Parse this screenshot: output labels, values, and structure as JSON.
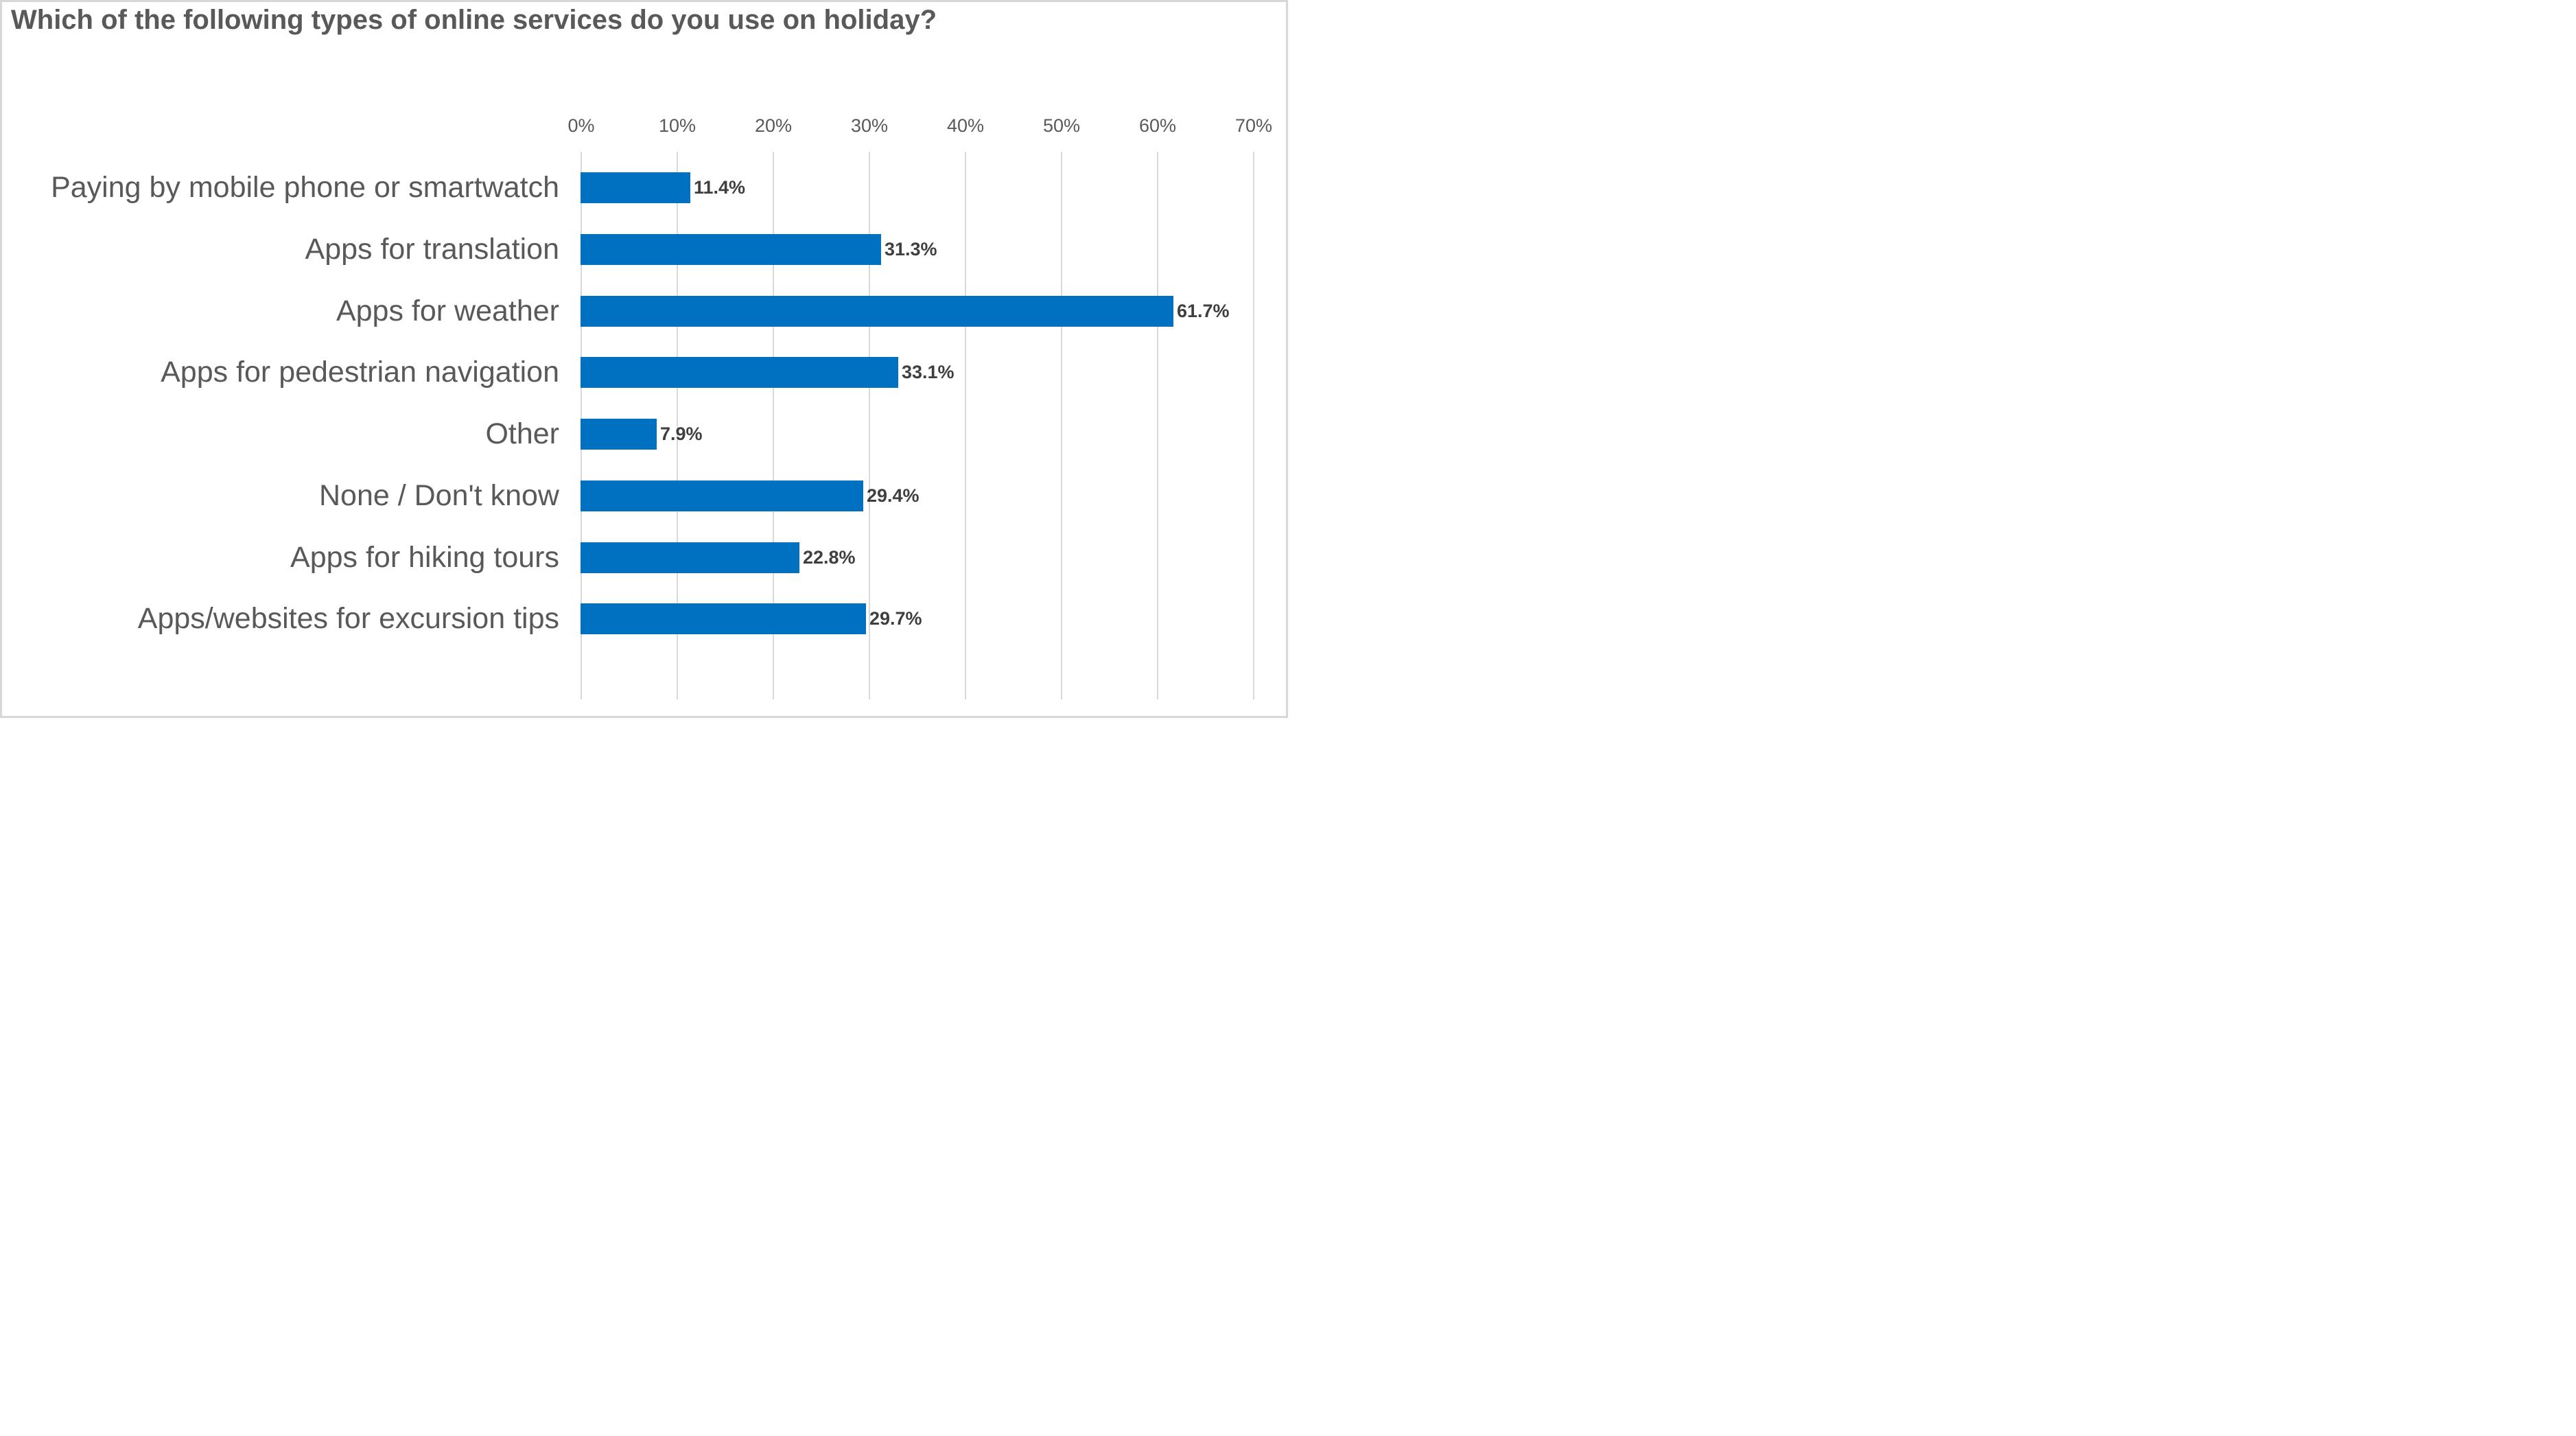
{
  "title": "Which of the following types of online services do you use on holiday?",
  "colors": {
    "bar": "#0070C0",
    "title_text": "#595959",
    "axis_text": "#595959",
    "category_text": "#595959",
    "value_label_text": "#3F3F3F",
    "gridline": "#D9D9D9",
    "frame_border": "#D7D7D7",
    "background": "#FFFFFF"
  },
  "chart_data": {
    "type": "bar",
    "orientation": "horizontal",
    "title": "Which of the following types of online services do you use on holiday?",
    "categories": [
      "Paying by mobile phone or smartwatch",
      "Apps for translation",
      "Apps for weather",
      "Apps for pedestrian navigation",
      "Other",
      "None / Don't know",
      "Apps for hiking tours",
      "Apps/websites for excursion tips"
    ],
    "values": [
      11.4,
      31.3,
      61.7,
      33.1,
      7.9,
      29.4,
      22.8,
      29.7
    ],
    "data_labels": [
      "11.4%",
      "31.3%",
      "61.7%",
      "33.1%",
      "7.9%",
      "29.4%",
      "22.8%",
      "29.7%"
    ],
    "x_axis": {
      "position": "top",
      "min": 0,
      "max": 70,
      "tick_step": 10,
      "tick_labels": [
        "0%",
        "10%",
        "20%",
        "30%",
        "40%",
        "50%",
        "60%",
        "70%"
      ]
    },
    "y_axis": {
      "label": ""
    },
    "grid": true,
    "legend": false,
    "data_labels_shown": true
  }
}
